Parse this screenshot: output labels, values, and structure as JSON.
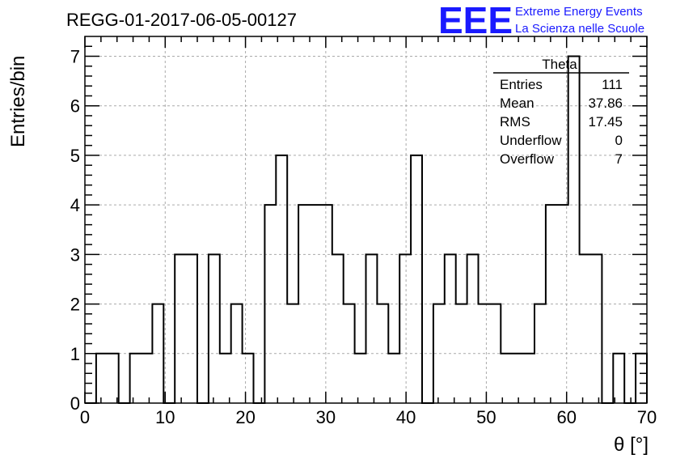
{
  "chart_data": {
    "type": "bar",
    "title": "REGG-01-2017-06-05-00127",
    "xlabel": "θ [°]",
    "ylabel": "Entries/bin",
    "xlim": [
      0,
      70
    ],
    "ylim": [
      0,
      7.4
    ],
    "grid": true,
    "x_ticks": [
      "0",
      "10",
      "20",
      "30",
      "40",
      "50",
      "60",
      "70"
    ],
    "y_ticks": [
      "0",
      "1",
      "2",
      "3",
      "4",
      "5",
      "6",
      "7"
    ],
    "bin_width": 1.4,
    "bin_edges_start": 0,
    "values": [
      0,
      1,
      1,
      0,
      1,
      1,
      2,
      0,
      3,
      3,
      0,
      3,
      1,
      2,
      1,
      0,
      4,
      5,
      2,
      4,
      4,
      4,
      3,
      2,
      1,
      3,
      2,
      1,
      3,
      5,
      0,
      2,
      3,
      2,
      3,
      2,
      2,
      1,
      1,
      1,
      2,
      4,
      4,
      7,
      3,
      3,
      0,
      1,
      0,
      1
    ],
    "stats_box": {
      "name": "Theta",
      "rows": [
        {
          "label": "Entries",
          "value": "111"
        },
        {
          "label": "Mean",
          "value": "37.86"
        },
        {
          "label": "RMS",
          "value": "17.45"
        },
        {
          "label": "Underflow",
          "value": "0"
        },
        {
          "label": "Overflow",
          "value": "7"
        }
      ]
    }
  },
  "logo": {
    "text": "EEE",
    "line1": "Extreme Energy Events",
    "line2": "La Scienza nelle Scuole",
    "color": "#1a1aff"
  }
}
